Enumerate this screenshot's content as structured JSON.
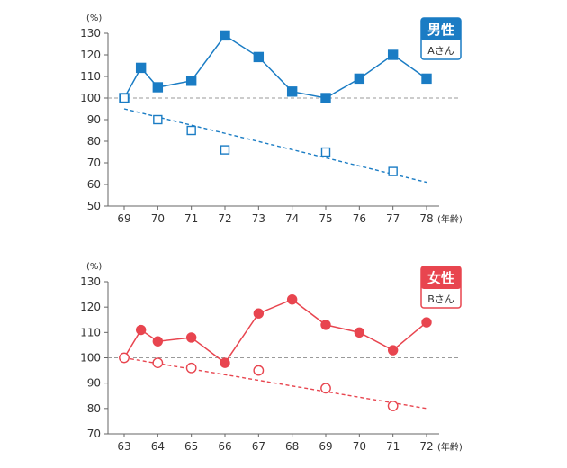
{
  "chart_data": [
    {
      "type": "line",
      "badge": {
        "title": "男性",
        "subtitle": "Aさん"
      },
      "y_unit": "(%)",
      "x_unit": "(年齢)",
      "ylim": [
        50,
        130
      ],
      "yticks": [
        50,
        60,
        70,
        80,
        90,
        100,
        110,
        120,
        130
      ],
      "xticks": [
        69,
        70,
        71,
        72,
        73,
        74,
        75,
        76,
        77,
        78
      ],
      "xlim": [
        69,
        78
      ],
      "reference_line": 100,
      "color": "#1a7cc4",
      "series": [
        {
          "marker": "square-filled",
          "points": [
            [
              69,
              100
            ],
            [
              69.5,
              114
            ],
            [
              70,
              105
            ],
            [
              71,
              108
            ],
            [
              72,
              129
            ],
            [
              73,
              119
            ],
            [
              74,
              103
            ],
            [
              75,
              100
            ],
            [
              76,
              109
            ],
            [
              77,
              120
            ],
            [
              78,
              109
            ]
          ]
        },
        {
          "marker": "square-open",
          "points": [
            [
              69,
              100
            ],
            [
              70,
              90
            ],
            [
              71,
              85
            ],
            [
              72,
              76
            ],
            [
              75,
              75
            ],
            [
              77,
              66
            ]
          ]
        }
      ],
      "trend_line": [
        [
          69,
          95
        ],
        [
          78,
          61
        ]
      ]
    },
    {
      "type": "line",
      "badge": {
        "title": "女性",
        "subtitle": "Bさん"
      },
      "y_unit": "(%)",
      "x_unit": "(年齢)",
      "ylim": [
        70,
        130
      ],
      "yticks": [
        70,
        80,
        90,
        100,
        110,
        120,
        130
      ],
      "xticks": [
        63,
        64,
        65,
        66,
        67,
        68,
        69,
        70,
        71,
        72
      ],
      "xlim": [
        63,
        72
      ],
      "reference_line": 100,
      "color": "#e8454f",
      "series": [
        {
          "marker": "circle-filled",
          "points": [
            [
              63,
              100
            ],
            [
              63.5,
              111
            ],
            [
              64,
              106.5
            ],
            [
              65,
              108
            ],
            [
              66,
              98
            ],
            [
              67,
              117.5
            ],
            [
              68,
              123
            ],
            [
              69,
              113
            ],
            [
              70,
              110
            ],
            [
              71,
              103
            ],
            [
              72,
              114
            ]
          ]
        },
        {
          "marker": "circle-open",
          "points": [
            [
              63,
              100
            ],
            [
              64,
              98
            ],
            [
              65,
              96
            ],
            [
              67,
              95
            ],
            [
              69,
              88
            ],
            [
              71,
              81
            ]
          ]
        }
      ],
      "trend_line": [
        [
          63,
          100
        ],
        [
          72,
          80
        ]
      ]
    }
  ]
}
